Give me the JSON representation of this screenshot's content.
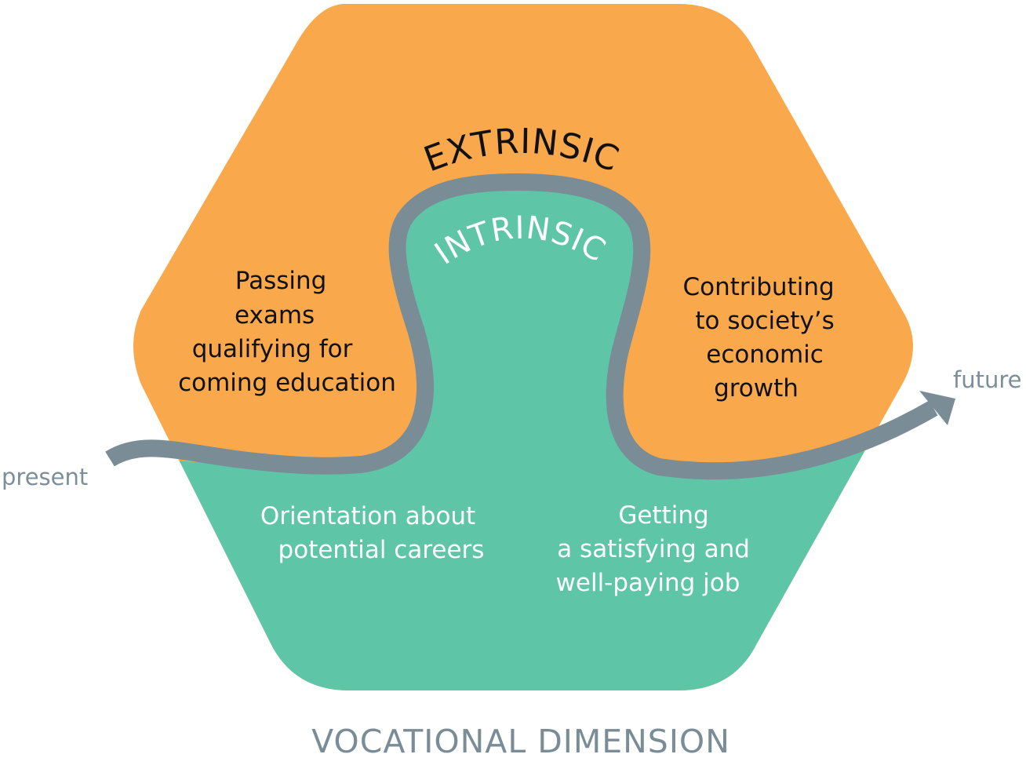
{
  "colors": {
    "extrinsic": "#f9a94b",
    "intrinsic": "#5ec6a6",
    "path": "#7a8c96"
  },
  "arc_labels": {
    "extrinsic": "EXTRINSIC",
    "intrinsic": "INTRINSIC"
  },
  "extrinsic_items": {
    "left": [
      "Passing",
      "exams",
      "qualifying for",
      "coming education"
    ],
    "right": [
      "Contributing",
      "to society’s",
      "economic",
      "growth"
    ]
  },
  "intrinsic_items": {
    "left": [
      "Orientation about",
      "potential careers"
    ],
    "right": [
      "Getting",
      "a satisfying and",
      "well-paying job"
    ]
  },
  "path_labels": {
    "start": "present",
    "end": "future"
  },
  "title": "VOCATIONAL DIMENSION"
}
